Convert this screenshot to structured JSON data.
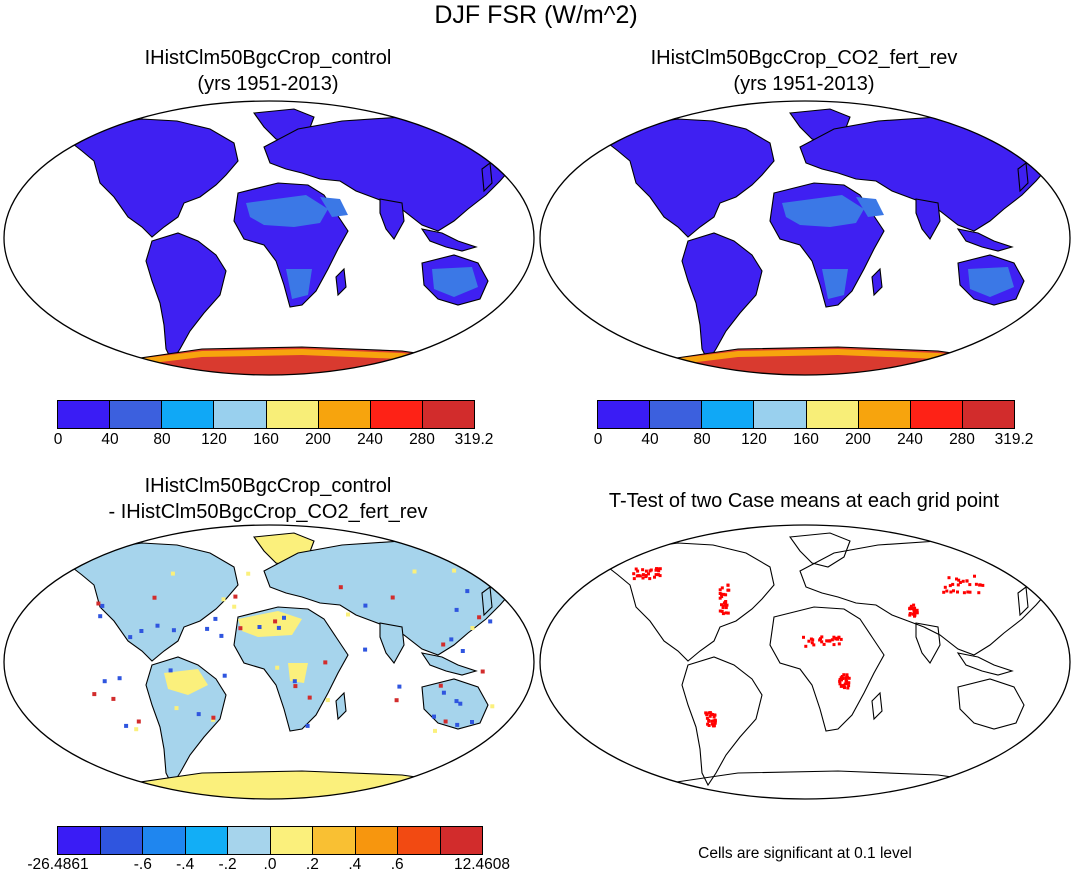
{
  "figure": {
    "title": "DJF FSR (W/m^2)"
  },
  "panels": {
    "control": {
      "title_line1": "IHistClm50BgcCrop_control",
      "title_line2": "(yrs 1951-2013)"
    },
    "co2": {
      "title_line1": "IHistClm50BgcCrop_CO2_fert_rev",
      "title_line2": "(yrs 1951-2013)"
    },
    "diff": {
      "title_line1": "IHistClm50BgcCrop_control",
      "title_line2": "- IHistClm50BgcCrop_CO2_fert_rev"
    },
    "ttest": {
      "title": "T-Test of two Case means at each grid point",
      "note": "Cells are significant at 0.1 level"
    }
  },
  "colorbars": {
    "abs": {
      "colors": [
        "#3a1cf5",
        "#3c60de",
        "#10a8f6",
        "#99d0ee",
        "#f8ee78",
        "#f7a40d",
        "#fe2216",
        "#d22c2c"
      ],
      "labels": [
        "0",
        "40",
        "80",
        "120",
        "160",
        "200",
        "240",
        "280",
        "319.2"
      ]
    },
    "diff": {
      "colors": [
        "#3a1cf5",
        "#2f55df",
        "#1f86ef",
        "#12aef6",
        "#a6d4ec",
        "#fbf07c",
        "#f9c033",
        "#f7960e",
        "#f24a12",
        "#d22c2c"
      ],
      "labels": [
        "-26.4861",
        "-.6",
        "-.4",
        "-.2",
        ".0",
        ".2",
        ".4",
        ".6",
        "12.4608"
      ],
      "label_slots": [
        0,
        2,
        3,
        4,
        5,
        6,
        7,
        8,
        10
      ]
    }
  },
  "colors": {
    "land_abs": "#3f20f2",
    "desert_abs": "#3b78e6",
    "antarctica_abs": "#d93a2f",
    "antarctica_edge_abs": "#f7a40d",
    "land_diff": "#a6d4ec",
    "yellow_diff": "#fbf07c",
    "significant_cells": "#ff0000"
  }
}
